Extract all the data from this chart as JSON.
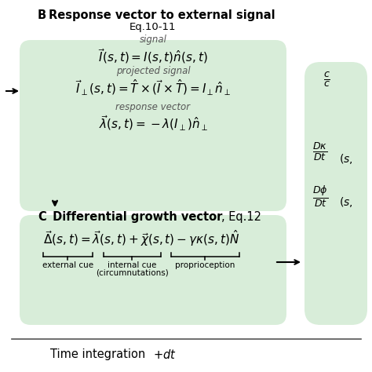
{
  "bg_color": "#ffffff",
  "green_box_color": "#d8edd9",
  "title_B_bold": "B",
  "title_B_text": " Response vector to external signal",
  "subtitle_B": "Eq.10-11",
  "label_signal": "signal",
  "eq1": "$\\vec{I}(s,t) = I(s,t)\\hat{n}(s,t)$",
  "label_proj": "projected signal",
  "eq2": "$\\vec{I}_{\\perp}(s,t) = \\hat{T} \\times (\\vec{I} \\times \\hat{T}) = I_{\\perp}\\hat{n}_{\\perp}$",
  "label_resp": "response vector",
  "eq3": "$\\vec{\\lambda}(s,t) = -\\lambda(I_{\\perp})\\hat{n}_{\\perp}$",
  "title_C_bold": "C",
  "title_C_text": "  Differential growth vector",
  "title_C_normal": ", Eq.12",
  "eq4": "$\\vec{\\Delta}(s,t) = \\vec{\\lambda}(s,t) + \\vec{\\chi}(s,t) - \\gamma\\kappa(s,t)\\hat{N}$",
  "label_ext": "external cue",
  "label_int": "internal cue",
  "label_int2": "(circumnutations)",
  "label_prop": "proprioception",
  "footer": "Time integration",
  "footer_math": "$+ dt$",
  "right_frac_top": "$\\frac{D\\kappa}{Dt}$",
  "right_frac_bot": "$\\frac{D\\phi}{Dt}$",
  "right_suffix": "$(s,$"
}
